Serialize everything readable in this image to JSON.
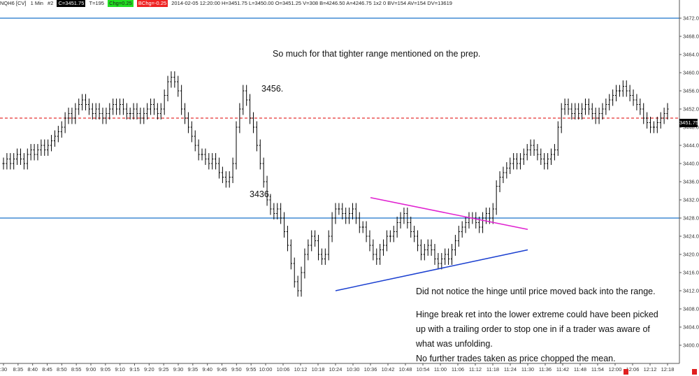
{
  "header": {
    "symbol": "NQH6 [CV]",
    "interval": "1 Min",
    "id": "#2",
    "close": "C=3451.75",
    "ticks": "T=195",
    "chg": "Chg=0.25",
    "bchg": "BChg=-0.25",
    "details": "2014-02-05 12:20:00  H=3451.75  L=3450.00  O=3451.25  V=308  B=4246.50  A=4246.75  1x2  0  BV=154  AV=154  DV=13619",
    "colors": {
      "close_bg": "#000000",
      "chg_bg": "#22dd22",
      "bchg_bg": "#ee2222"
    }
  },
  "annotations": {
    "top_note": "So much for that tighter range mentioned on the prep.",
    "label_high": "3456.",
    "label_low": "3436.",
    "note1": "Did not notice the hinge until price moved back into the range.",
    "note2": "Hinge break ret into the lower extreme could have been picked\nup with a trailing order to stop one in if a trader was aware of\nwhat was unfolding.",
    "note3": "No further trades taken as price chopped the mean."
  },
  "last_price_label": "3451.75",
  "chart_data": {
    "type": "ohlc",
    "title": "",
    "xlabel": "",
    "ylabel": "",
    "ylim": [
      3396,
      3476
    ],
    "grid": false,
    "y_ticks": [
      "3400.00",
      "3404.00",
      "3408.00",
      "3412.00",
      "3416.00",
      "3420.00",
      "3424.00",
      "3428.00",
      "3432.00",
      "3436.00",
      "3440.00",
      "3444.00",
      "3448.00",
      "3452.00",
      "3456.00",
      "3460.00",
      "3464.00",
      "3468.00",
      "3472.00"
    ],
    "x_ticks": [
      ":30",
      "8:35",
      "8:40",
      "8:45",
      "8:50",
      "8:55",
      "9:00",
      "9:05",
      "9:10",
      "9:15",
      "9:20",
      "9:25",
      "9:30",
      "9:35",
      "9:40",
      "9:45",
      "9:50",
      "9:55",
      "10:00",
      "10:06",
      "10:12",
      "10:18",
      "10:24",
      "10:30",
      "10:36",
      "10:42",
      "10:48",
      "10:54",
      "11:00",
      "11:06",
      "11:12",
      "11:18",
      "11:24",
      "11:30",
      "11:36",
      "11:42",
      "11:48",
      "11:54",
      "12:00",
      "12:06",
      "12:12",
      "12:18"
    ],
    "x_span_minutes": 228,
    "horizontal_lines": [
      {
        "y": 3472.0,
        "color": "#1a75c9",
        "style": "solid"
      },
      {
        "y": 3428.0,
        "color": "#1a75c9",
        "style": "solid"
      },
      {
        "y": 3450.0,
        "color": "#e53030",
        "style": "dashed"
      }
    ],
    "trendlines": [
      {
        "from": [
          "10:36",
          3432.5
        ],
        "to": [
          "11:30",
          3425.5
        ],
        "color": "#e020d0"
      },
      {
        "from": [
          "10:24",
          3412.0
        ],
        "to": [
          "11:30",
          3421.0
        ],
        "color": "#1a3fd0"
      }
    ],
    "closes": [
      3440,
      3441,
      3440,
      3441,
      3442,
      3441,
      3440,
      3442,
      3443,
      3442,
      3443,
      3444,
      3443,
      3444,
      3445,
      3446,
      3447,
      3448,
      3450,
      3451,
      3450,
      3452,
      3453,
      3454,
      3453,
      3452,
      3451,
      3452,
      3451,
      3450,
      3451,
      3452,
      3453,
      3452,
      3453,
      3452,
      3451,
      3451,
      3452,
      3451,
      3450,
      3451,
      3452,
      3453,
      3452,
      3451,
      3452,
      3455,
      3458,
      3459,
      3458,
      3456,
      3452,
      3450,
      3448,
      3446,
      3444,
      3442,
      3442,
      3441,
      3440,
      3441,
      3440,
      3438,
      3437,
      3436,
      3437,
      3440,
      3448,
      3452,
      3456,
      3454,
      3450,
      3448,
      3444,
      3440,
      3436,
      3432,
      3430,
      3429,
      3430,
      3428,
      3425,
      3422,
      3418,
      3414,
      3412,
      3416,
      3420,
      3422,
      3424,
      3423,
      3420,
      3419,
      3420,
      3424,
      3428,
      3430,
      3430,
      3429,
      3428,
      3429,
      3430,
      3428,
      3426,
      3426,
      3424,
      3422,
      3420,
      3419,
      3421,
      3422,
      3424,
      3424,
      3425,
      3427,
      3428,
      3429,
      3427,
      3425,
      3424,
      3422,
      3420,
      3421,
      3422,
      3421,
      3419,
      3418,
      3419,
      3420,
      3419,
      3421,
      3423,
      3425,
      3426,
      3427,
      3428,
      3428,
      3427,
      3426,
      3428,
      3429,
      3428,
      3430,
      3435,
      3437,
      3438,
      3439,
      3440,
      3441,
      3440,
      3441,
      3442,
      3443,
      3444,
      3443,
      3442,
      3441,
      3440,
      3441,
      3442,
      3443,
      3448,
      3452,
      3453,
      3452,
      3451,
      3452,
      3451,
      3452,
      3453,
      3452,
      3451,
      3450,
      3451,
      3452,
      3453,
      3454,
      3455,
      3456,
      3456,
      3457,
      3456,
      3455,
      3454,
      3453,
      3452,
      3450,
      3449,
      3448,
      3448,
      3449,
      3450,
      3451,
      3452
    ],
    "wick": 1.3,
    "bar_color": "#000000"
  }
}
